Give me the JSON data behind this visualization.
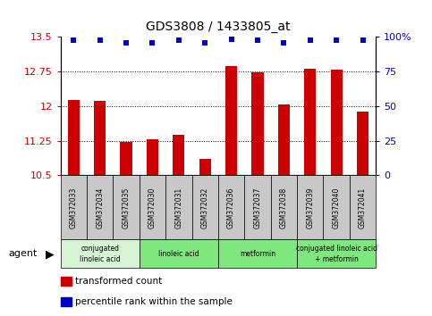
{
  "title": "GDS3808 / 1433805_at",
  "samples": [
    "GSM372033",
    "GSM372034",
    "GSM372035",
    "GSM372030",
    "GSM372031",
    "GSM372032",
    "GSM372036",
    "GSM372037",
    "GSM372038",
    "GSM372039",
    "GSM372040",
    "GSM372041"
  ],
  "bar_values": [
    12.12,
    12.1,
    11.22,
    11.28,
    11.37,
    10.85,
    12.85,
    12.72,
    12.04,
    12.8,
    12.78,
    11.88
  ],
  "percentile_values": [
    97,
    97,
    95,
    95,
    97,
    95,
    98,
    97,
    95,
    97,
    97,
    97
  ],
  "bar_color": "#cc0000",
  "percentile_color": "#0000cc",
  "ylim_left": [
    10.5,
    13.5
  ],
  "ylim_right": [
    0,
    100
  ],
  "yticks_left": [
    10.5,
    11.25,
    12.0,
    12.75,
    13.5
  ],
  "yticks_right": [
    0,
    25,
    50,
    75,
    100
  ],
  "ytick_labels_left": [
    "10.5",
    "11.25",
    "12",
    "12.75",
    "13.5"
  ],
  "ytick_labels_right": [
    "0",
    "25",
    "50",
    "75",
    "100%"
  ],
  "groups": [
    {
      "label": "conjugated\nlinoleic acid",
      "start": 0,
      "end": 3,
      "color": "#d4f4d4"
    },
    {
      "label": "linoleic acid",
      "start": 3,
      "end": 6,
      "color": "#7ee87e"
    },
    {
      "label": "metformin",
      "start": 6,
      "end": 9,
      "color": "#7ee87e"
    },
    {
      "label": "conjugated linoleic acid\n+ metformin",
      "start": 9,
      "end": 12,
      "color": "#7ee87e"
    }
  ],
  "agent_label": "agent",
  "legend_items": [
    {
      "label": "transformed count",
      "color": "#cc0000"
    },
    {
      "label": "percentile rank within the sample",
      "color": "#0000cc"
    }
  ],
  "bar_width": 0.45,
  "percentile_marker_size": 5,
  "grid_linestyle": ":",
  "grid_color": "#000000",
  "background_color": "#ffffff",
  "tick_label_color_left": "#cc0000",
  "tick_label_color_right": "#0000cc",
  "sample_box_color": "#c8c8c8"
}
